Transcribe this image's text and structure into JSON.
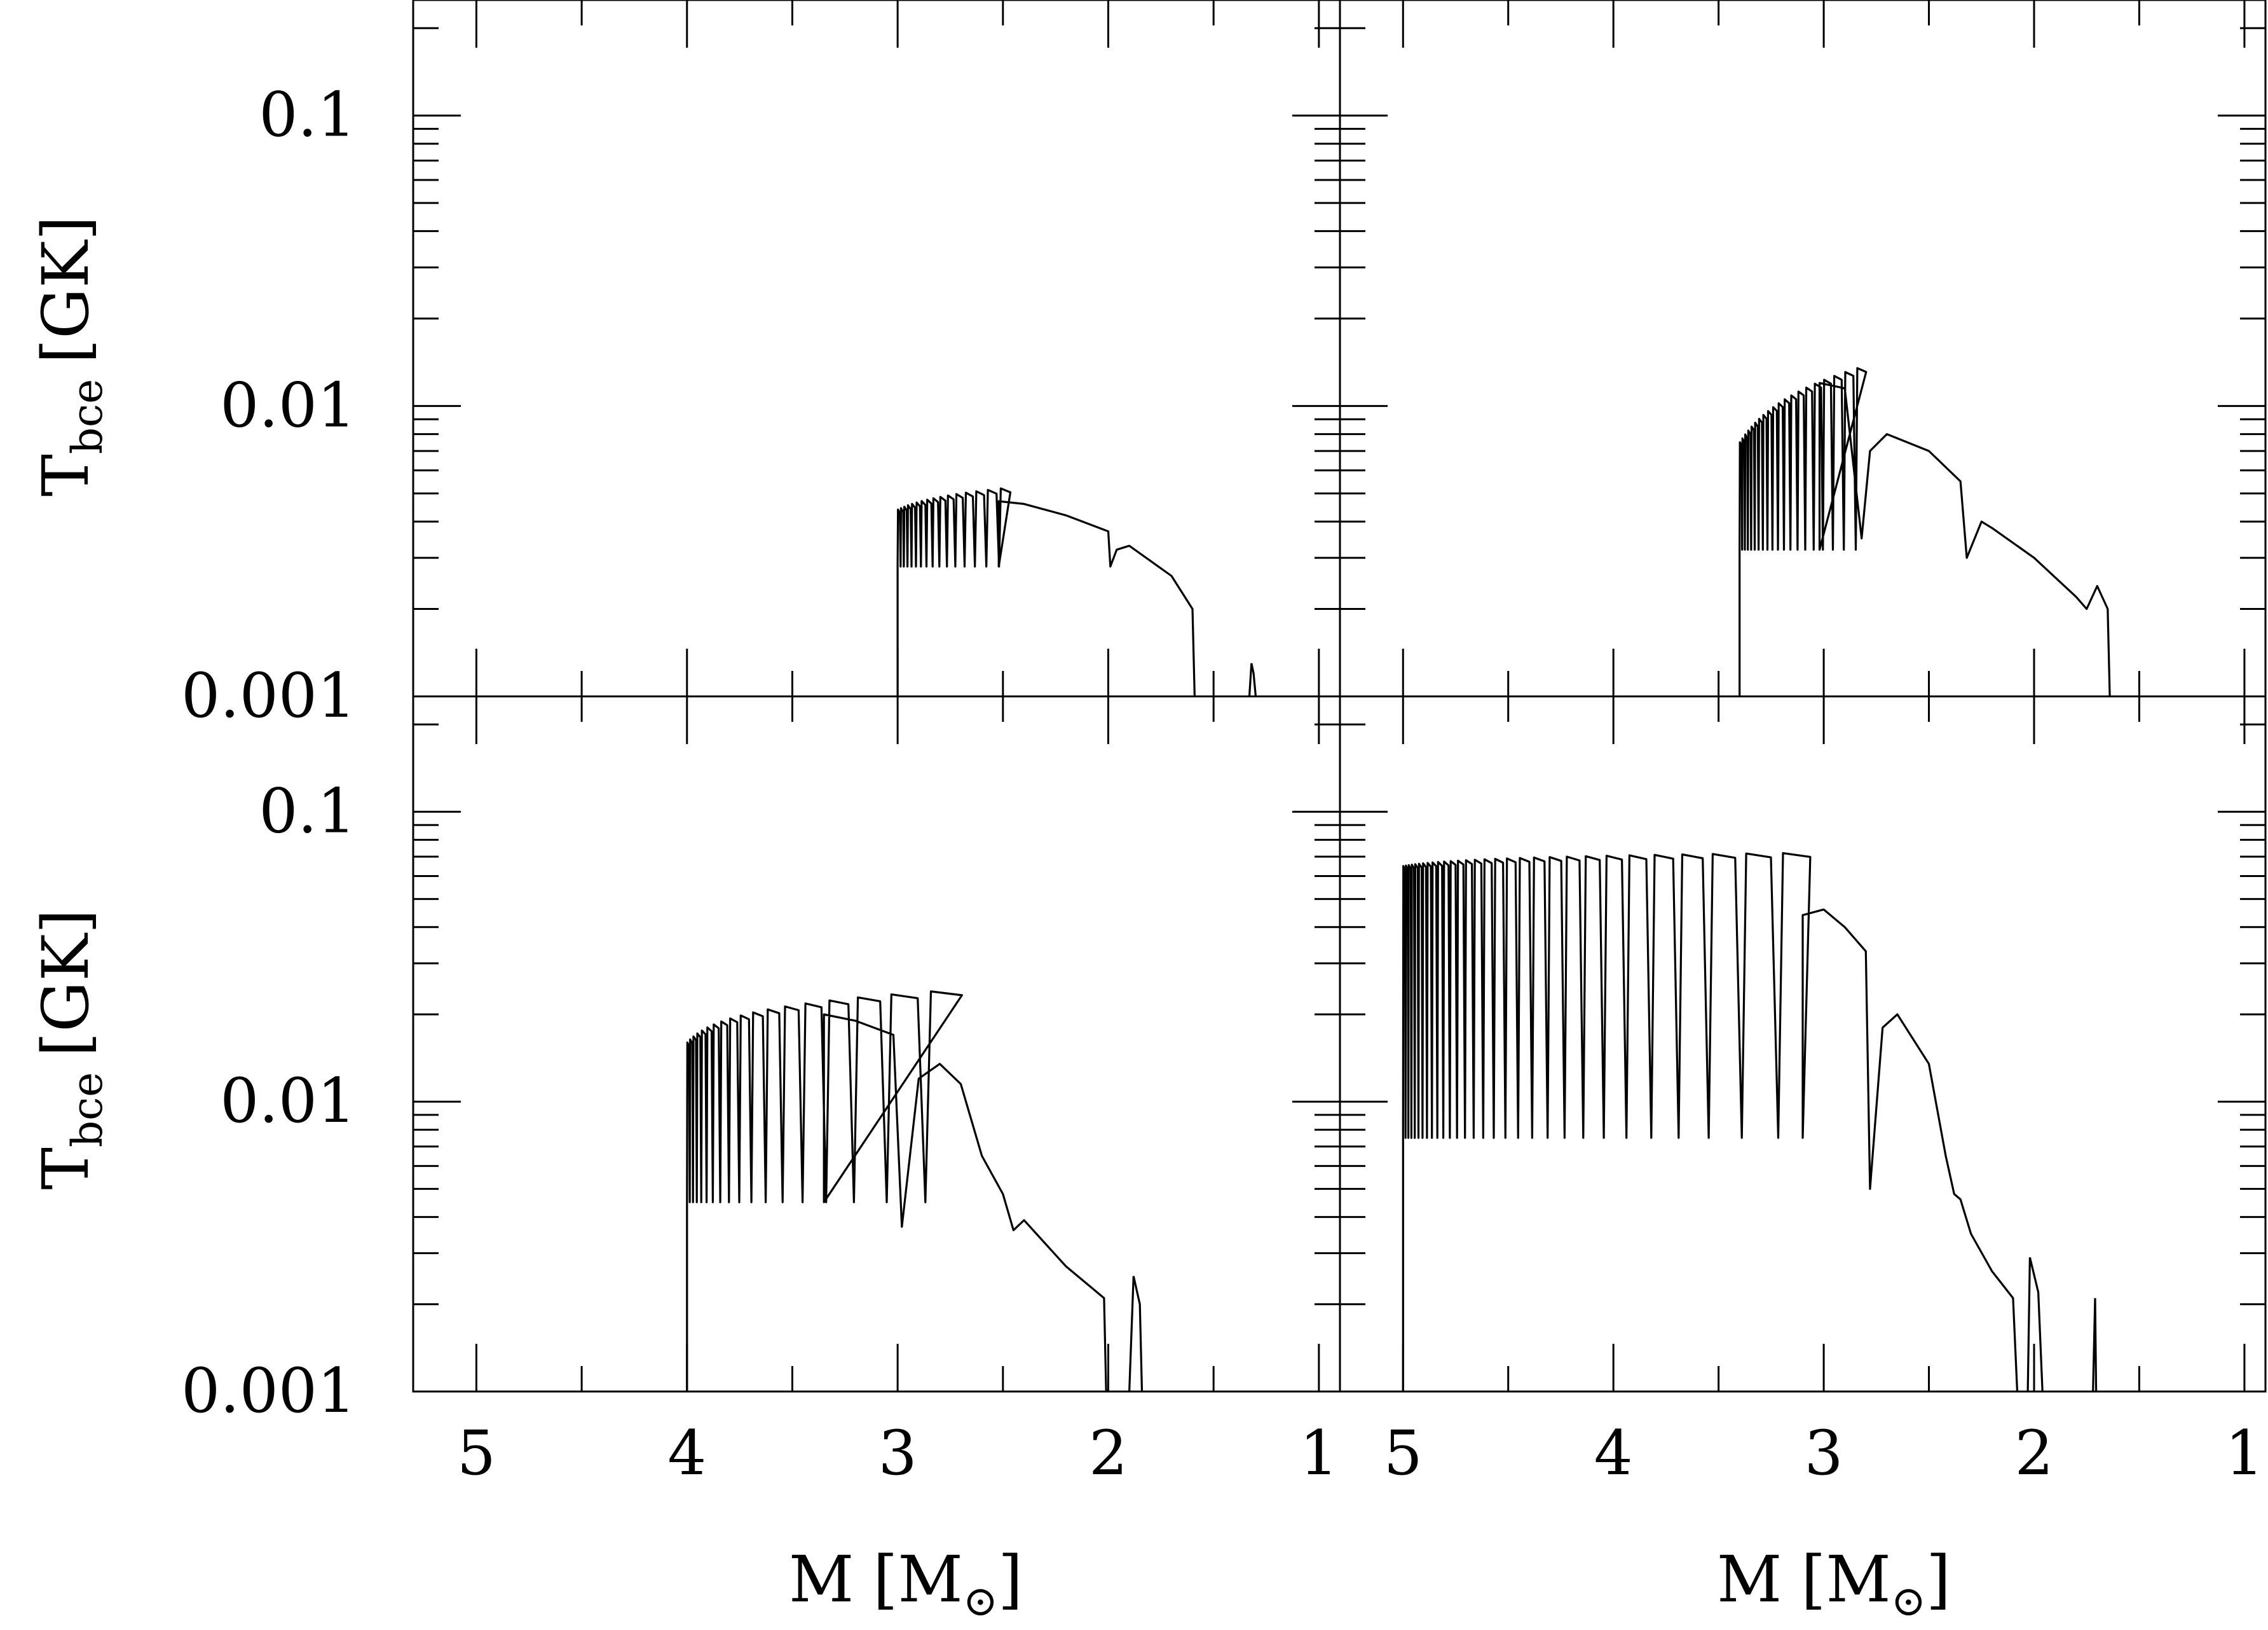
{
  "figure": {
    "stroke_color": "#000000",
    "background": "#ffffff",
    "x_title_main": "M",
    "x_title_open": "[M",
    "x_title_sub": "⊙",
    "x_title_close": "]",
    "y_title_main": "T",
    "y_title_sub": "bce",
    "y_title_unit": "[GK]"
  },
  "chart_data": [
    {
      "type": "line",
      "panel": "top-left",
      "xlabel": "M [M⊙]",
      "ylabel": "T_bce [GK]",
      "xlim": [
        5.3,
        0.9
      ],
      "ylim": [
        0.001,
        0.25
      ],
      "x_scale": "linear, reversed",
      "y_scale": "log",
      "x_ticks": [
        5,
        4,
        3,
        2,
        1
      ],
      "y_ticks": [
        0.001,
        0.01,
        0.1
      ],
      "y_tick_labels": [
        "0.001",
        "0.01",
        "0.1"
      ],
      "pulses": {
        "start": 3.0,
        "count": 16,
        "peak_first": 0.0044,
        "peak_last": 0.0052,
        "trough": 0.0028,
        "step_first": 0.014,
        "step_growth": 1.11
      },
      "post_envelope": [
        [
          2.52,
          0.0047
        ],
        [
          2.4,
          0.0046
        ],
        [
          2.2,
          0.0042
        ],
        [
          2.0,
          0.0037
        ],
        [
          1.99,
          0.0028
        ],
        [
          1.96,
          0.0032
        ],
        [
          1.9,
          0.0033
        ],
        [
          1.7,
          0.0026
        ],
        [
          1.6,
          0.002
        ],
        [
          1.59,
          0.001
        ]
      ],
      "late_spike": [
        [
          1.33,
          0.001
        ],
        [
          1.32,
          0.0013
        ],
        [
          1.31,
          0.0012
        ],
        [
          1.3,
          0.001
        ]
      ]
    },
    {
      "type": "line",
      "panel": "top-right",
      "xlabel": "M [M⊙]",
      "ylabel": "T_bce [GK]",
      "xlim": [
        5.3,
        0.9
      ],
      "ylim": [
        0.001,
        0.25
      ],
      "x_scale": "linear, reversed",
      "y_scale": "log",
      "x_ticks": [
        5,
        4,
        3,
        2,
        1
      ],
      "y_ticks": [
        0.001,
        0.01,
        0.1
      ],
      "pulses": {
        "start": 3.4,
        "count": 20,
        "peak_first": 0.0075,
        "peak_last": 0.0135,
        "trough": 0.0032,
        "step_first": 0.012,
        "step_growth": 1.09
      },
      "post_envelope": [
        [
          3.02,
          0.012
        ],
        [
          2.9,
          0.0115
        ],
        [
          2.82,
          0.0035
        ],
        [
          2.78,
          0.007
        ],
        [
          2.7,
          0.008
        ],
        [
          2.5,
          0.007
        ],
        [
          2.35,
          0.0055
        ],
        [
          2.32,
          0.003
        ],
        [
          2.25,
          0.004
        ],
        [
          2.2,
          0.0038
        ],
        [
          2.0,
          0.003
        ],
        [
          1.8,
          0.0022
        ],
        [
          1.75,
          0.002
        ],
        [
          1.7,
          0.0024
        ],
        [
          1.65,
          0.002
        ],
        [
          1.64,
          0.001
        ]
      ]
    },
    {
      "type": "line",
      "panel": "bottom-left",
      "xlabel": "M [M⊙]",
      "ylabel": "T_bce [GK]",
      "xlim": [
        5.3,
        0.9
      ],
      "ylim": [
        0.001,
        0.25
      ],
      "x_scale": "linear, reversed",
      "y_scale": "log",
      "x_ticks": [
        5,
        4,
        3,
        2,
        1
      ],
      "x_tick_labels": [
        "5",
        "4",
        "3",
        "2",
        "1"
      ],
      "y_ticks": [
        0.001,
        0.01,
        0.1
      ],
      "y_tick_labels": [
        "0.001",
        "0.01",
        "0.1"
      ],
      "pulses": {
        "start": 4.0,
        "count": 18,
        "peak_first": 0.016,
        "peak_last": 0.024,
        "trough": 0.0045,
        "step_first": 0.013,
        "step_growth": 1.18
      },
      "post_envelope": [
        [
          3.35,
          0.02
        ],
        [
          3.2,
          0.019
        ],
        [
          3.02,
          0.017
        ],
        [
          2.98,
          0.0037
        ],
        [
          2.9,
          0.012
        ],
        [
          2.8,
          0.0135
        ],
        [
          2.7,
          0.0115
        ],
        [
          2.6,
          0.0065
        ],
        [
          2.5,
          0.0048
        ],
        [
          2.45,
          0.0036
        ],
        [
          2.4,
          0.0039
        ],
        [
          2.2,
          0.0027
        ],
        [
          2.02,
          0.0021
        ],
        [
          2.01,
          0.001
        ]
      ],
      "late_spike": [
        [
          1.9,
          0.001
        ],
        [
          1.88,
          0.0025
        ],
        [
          1.85,
          0.002
        ],
        [
          1.84,
          0.001
        ]
      ]
    },
    {
      "type": "line",
      "panel": "bottom-right",
      "xlabel": "M [M⊙]",
      "ylabel": "T_bce [GK]",
      "xlim": [
        5.3,
        0.9
      ],
      "ylim": [
        0.001,
        0.25
      ],
      "x_scale": "linear, reversed",
      "y_scale": "log",
      "x_ticks": [
        5,
        4,
        3,
        2,
        1
      ],
      "x_tick_labels": [
        "5",
        "4",
        "3",
        "2",
        "1"
      ],
      "y_ticks": [
        0.001,
        0.01,
        0.1
      ],
      "pulses": {
        "start": 5.0,
        "count": 30,
        "peak_first": 0.065,
        "peak_last": 0.072,
        "trough": 0.0075,
        "step_first": 0.012,
        "step_growth": 1.1
      },
      "post_envelope": [
        [
          3.1,
          0.044
        ],
        [
          3.0,
          0.046
        ],
        [
          2.9,
          0.04
        ],
        [
          2.8,
          0.033
        ],
        [
          2.78,
          0.005
        ],
        [
          2.72,
          0.018
        ],
        [
          2.65,
          0.02
        ],
        [
          2.5,
          0.0135
        ],
        [
          2.42,
          0.0065
        ],
        [
          2.38,
          0.0048
        ],
        [
          2.35,
          0.0046
        ],
        [
          2.3,
          0.0035
        ],
        [
          2.2,
          0.0026
        ],
        [
          2.1,
          0.0021
        ],
        [
          2.08,
          0.001
        ]
      ],
      "late_spikes": [
        [
          [
            2.03,
            0.001
          ],
          [
            2.02,
            0.0029
          ],
          [
            1.98,
            0.0022
          ],
          [
            1.96,
            0.001
          ]
        ],
        [
          [
            1.72,
            0.001
          ],
          [
            1.71,
            0.0021
          ],
          [
            1.705,
            0.001
          ]
        ]
      ]
    }
  ]
}
